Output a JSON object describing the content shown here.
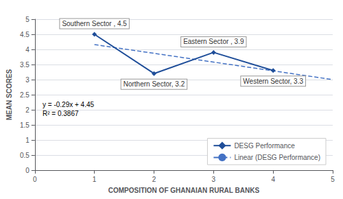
{
  "chart_data": {
    "type": "line",
    "xlabel": "COMPOSITION OF GHANAIAN RURAL BANKS",
    "ylabel": "MEAN SCORES",
    "series": [
      {
        "name": "DESG Performance",
        "color": "#1f4e99",
        "x": [
          1,
          2,
          3,
          4
        ],
        "values": [
          4.5,
          3.2,
          3.9,
          3.3
        ],
        "marker": "diamond",
        "line_style": "solid"
      },
      {
        "name": "Linear (DESG Performance)",
        "color": "#4472c4",
        "x": [
          1,
          5
        ],
        "values": [
          4.16,
          3.0
        ],
        "marker": "none",
        "line_style": "dashed"
      }
    ],
    "annotations": [
      {
        "text": "Southern Sector , 4.5",
        "x": 1,
        "y": 4.5
      },
      {
        "text": "Eastern Sector , 3.9",
        "x": 3,
        "y": 3.9
      },
      {
        "text": "Northern Sector, 3.2",
        "x": 2,
        "y": 3.2
      },
      {
        "text": "Western Sector, 3.3",
        "x": 4,
        "y": 3.3
      },
      {
        "text": "y = -0.29x + 4.45\nR² = 0.3867"
      }
    ],
    "xlim": [
      0,
      5
    ],
    "ylim": [
      0,
      5
    ],
    "xticks": [
      0,
      1,
      2,
      3,
      4,
      5
    ],
    "yticks": [
      0,
      0.5,
      1.0,
      1.5,
      2.0,
      2.5,
      3.0,
      3.5,
      4.0,
      4.5,
      5.0
    ],
    "grid": true,
    "legend": "lower right"
  }
}
